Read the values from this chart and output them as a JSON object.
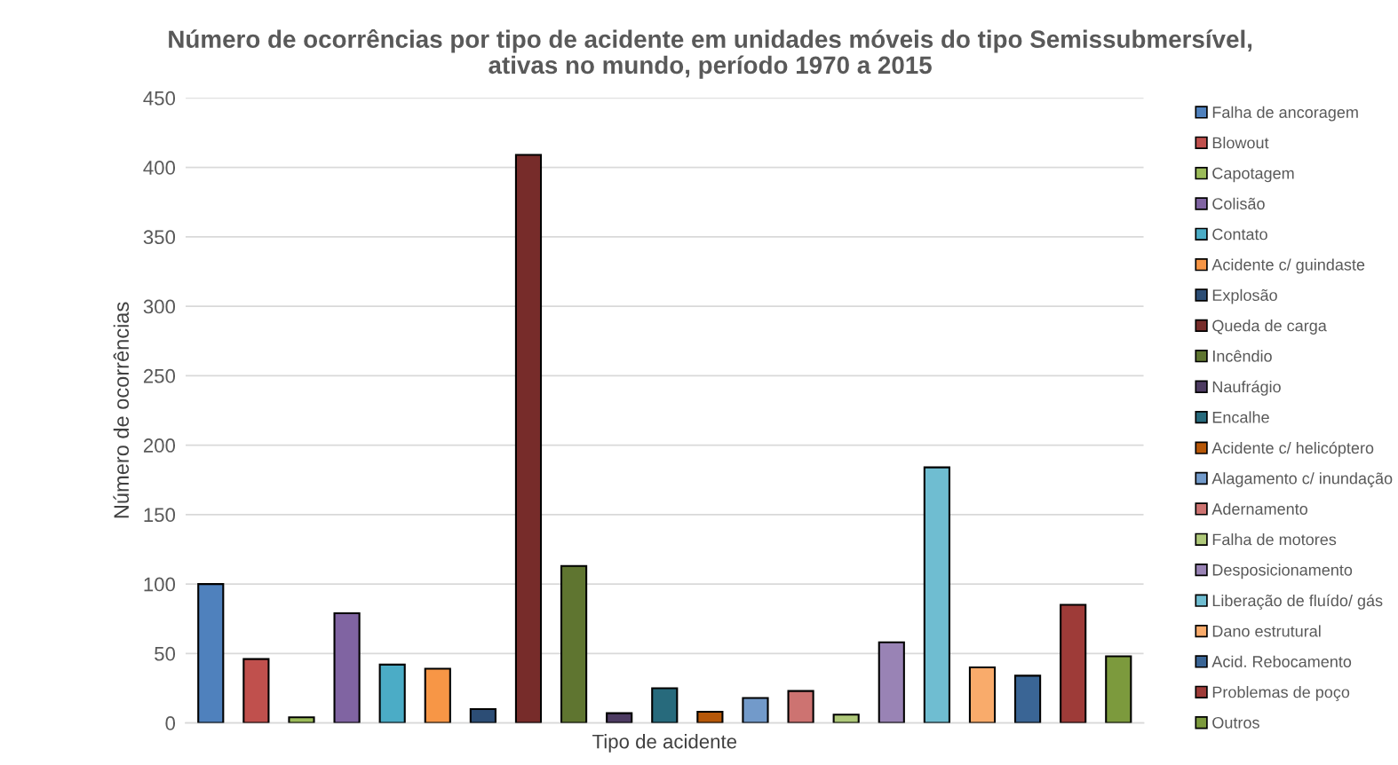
{
  "chart_data": {
    "type": "bar",
    "title": "Número de ocorrências por tipo de acidente em unidades móveis do tipo Semissubmersível,\nativas no mundo, período 1970 a 2015",
    "xlabel": "Tipo de acidente",
    "ylabel": "Número de ocorrências",
    "categories": [
      null
    ],
    "series": [
      {
        "name": "Falha de ancoragem",
        "color": "#4f81bd",
        "values": [
          100
        ]
      },
      {
        "name": "Blowout",
        "color": "#c0504d",
        "values": [
          46
        ]
      },
      {
        "name": "Capotagem",
        "color": "#9bbb59",
        "values": [
          4
        ]
      },
      {
        "name": "Colisão",
        "color": "#8064a2",
        "values": [
          79
        ]
      },
      {
        "name": "Contato",
        "color": "#4bacc6",
        "values": [
          42
        ]
      },
      {
        "name": "Acidente c/ guindaste",
        "color": "#f79646",
        "values": [
          39
        ]
      },
      {
        "name": "Explosão",
        "color": "#2c4d75",
        "values": [
          10
        ]
      },
      {
        "name": "Queda de carga",
        "color": "#772c2a",
        "values": [
          409
        ]
      },
      {
        "name": "Incêndio",
        "color": "#5f7530",
        "values": [
          113
        ]
      },
      {
        "name": "Naufrágio",
        "color": "#4d3b62",
        "values": [
          7
        ]
      },
      {
        "name": "Encalhe",
        "color": "#276a7c",
        "values": [
          25
        ]
      },
      {
        "name": "Acidente c/ helicóptero",
        "color": "#b65708",
        "values": [
          8
        ]
      },
      {
        "name": "Alagamento c/ inundação",
        "color": "#729aca",
        "values": [
          18
        ]
      },
      {
        "name": "Adernamento",
        "color": "#cd7371",
        "values": [
          23
        ]
      },
      {
        "name": "Falha de motores",
        "color": "#afc97a",
        "values": [
          6
        ]
      },
      {
        "name": "Desposicionamento",
        "color": "#9983b5",
        "values": [
          58
        ]
      },
      {
        "name": "Liberação de fluído/ gás",
        "color": "#6fbdd1",
        "values": [
          184
        ]
      },
      {
        "name": "Dano estrutural",
        "color": "#f9ab6b",
        "values": [
          40
        ]
      },
      {
        "name": "Acid. Rebocamento",
        "color": "#3a6595",
        "values": [
          34
        ]
      },
      {
        "name": "Problemas de poço",
        "color": "#9e3b38",
        "values": [
          85
        ]
      },
      {
        "name": "Outros",
        "color": "#7c9a3d",
        "values": [
          48
        ]
      }
    ],
    "ylim": [
      0,
      450
    ],
    "yticks": [
      0,
      50,
      100,
      150,
      200,
      250,
      300,
      350,
      400,
      450
    ],
    "grid": "y",
    "legend": "right"
  }
}
